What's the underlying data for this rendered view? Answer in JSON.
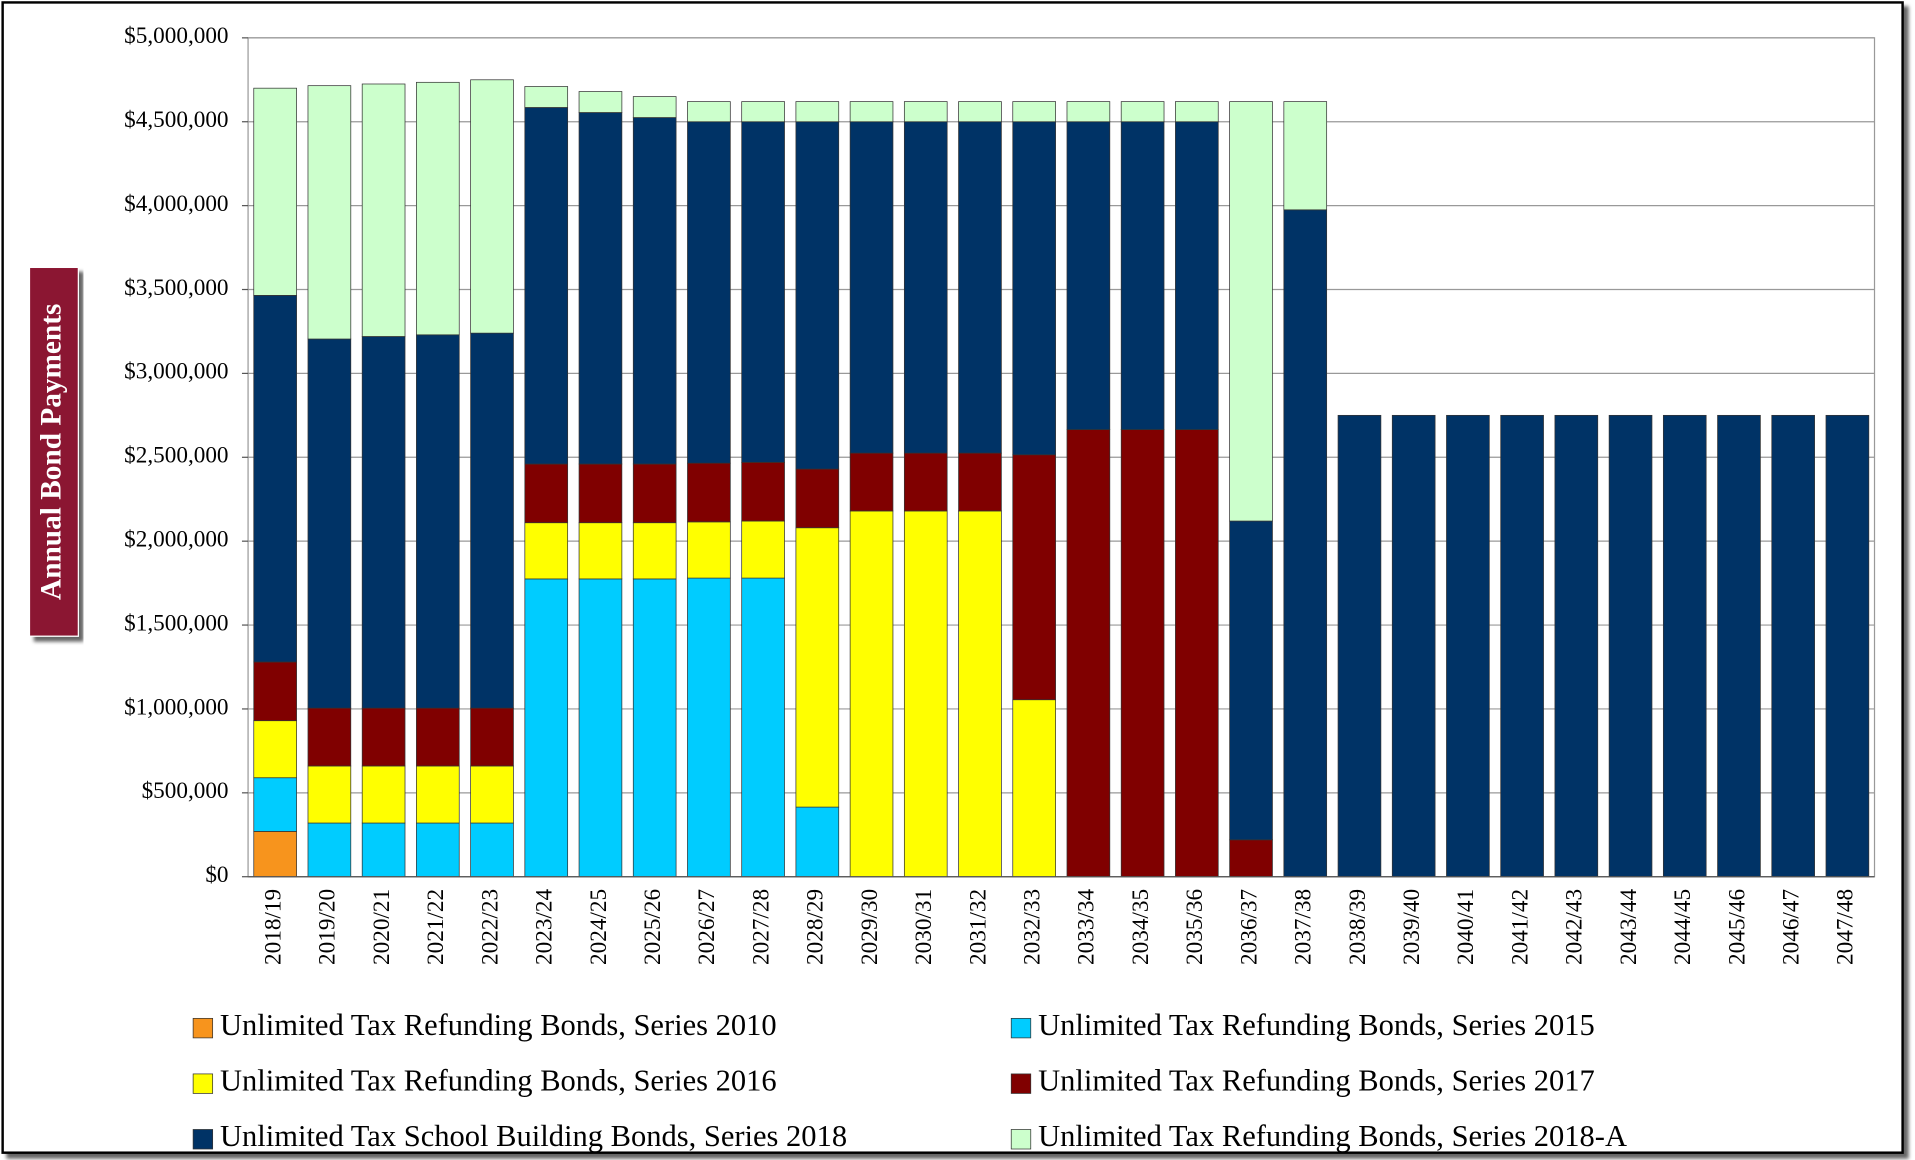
{
  "chart_data": {
    "type": "stacked_bar",
    "y_label": "Annual Bond Payments",
    "categories": [
      "2018/19",
      "2019/20",
      "2020/21",
      "2021/22",
      "2022/23",
      "2023/24",
      "2024/25",
      "2025/26",
      "2026/27",
      "2027/28",
      "2028/29",
      "2029/30",
      "2030/31",
      "2031/32",
      "2032/33",
      "2033/34",
      "2034/35",
      "2035/36",
      "2036/37",
      "2037/38",
      "2038/39",
      "2039/40",
      "2040/41",
      "2041/42",
      "2042/43",
      "2043/44",
      "2044/45",
      "2045/46",
      "2046/47",
      "2047/48"
    ],
    "series": [
      {
        "name": "Unlimited Tax Refunding Bonds, Series 2010",
        "color": "#f7941d",
        "values": [
          270000,
          0,
          0,
          0,
          0,
          0,
          0,
          0,
          0,
          0,
          0,
          0,
          0,
          0,
          0,
          0,
          0,
          0,
          0,
          0,
          0,
          0,
          0,
          0,
          0,
          0,
          0,
          0,
          0,
          0
        ]
      },
      {
        "name": "Unlimited Tax Refunding Bonds, Series 2015",
        "color": "#00ccff",
        "values": [
          320000,
          320000,
          320000,
          320000,
          320000,
          1775000,
          1775000,
          1775000,
          1780000,
          1780000,
          415000,
          0,
          0,
          0,
          0,
          0,
          0,
          0,
          0,
          0,
          0,
          0,
          0,
          0,
          0,
          0,
          0,
          0,
          0,
          0
        ]
      },
      {
        "name": "Unlimited Tax Refunding Bonds, Series 2016",
        "color": "#ffff00",
        "values": [
          340000,
          340000,
          340000,
          340000,
          340000,
          335000,
          335000,
          335000,
          335000,
          340000,
          1665000,
          2180000,
          2180000,
          2180000,
          1055000,
          0,
          0,
          0,
          0,
          0,
          0,
          0,
          0,
          0,
          0,
          0,
          0,
          0,
          0,
          0
        ]
      },
      {
        "name": "Unlimited Tax Refunding Bonds, Series 2017",
        "color": "#800000",
        "values": [
          350000,
          345000,
          345000,
          345000,
          345000,
          350000,
          350000,
          350000,
          350000,
          350000,
          350000,
          345000,
          345000,
          345000,
          1460000,
          2665000,
          2665000,
          2665000,
          220000,
          0,
          0,
          0,
          0,
          0,
          0,
          0,
          0,
          0,
          0,
          0
        ]
      },
      {
        "name": "Unlimited Tax School Building Bonds, Series 2018",
        "color": "#003366",
        "values": [
          2185000,
          2200000,
          2215000,
          2225000,
          2235000,
          2125000,
          2095000,
          2065000,
          2035000,
          2030000,
          2070000,
          1975000,
          1975000,
          1975000,
          1985000,
          1835000,
          1835000,
          1835000,
          1900000,
          3975000,
          2750000,
          2750000,
          2750000,
          2750000,
          2750000,
          2750000,
          2750000,
          2750000,
          2750000,
          2750000
        ]
      },
      {
        "name": "Unlimited Tax Refunding Bonds, Series 2018-A",
        "color": "#ccffcc",
        "values": [
          1235000,
          1510000,
          1505000,
          1505000,
          1510000,
          125000,
          125000,
          125000,
          120000,
          120000,
          120000,
          120000,
          120000,
          120000,
          120000,
          120000,
          120000,
          120000,
          2500000,
          645000,
          0,
          0,
          0,
          0,
          0,
          0,
          0,
          0,
          0,
          0
        ]
      }
    ],
    "ylim": [
      0,
      5000000
    ],
    "yticks": [
      {
        "value": 0,
        "label": "$0"
      },
      {
        "value": 500000,
        "label": "$500,000"
      },
      {
        "value": 1000000,
        "label": "$1,000,000"
      },
      {
        "value": 1500000,
        "label": "$1,500,000"
      },
      {
        "value": 2000000,
        "label": "$2,000,000"
      },
      {
        "value": 2500000,
        "label": "$2,500,000"
      },
      {
        "value": 3000000,
        "label": "$3,000,000"
      },
      {
        "value": 3500000,
        "label": "$3,500,000"
      },
      {
        "value": 4000000,
        "label": "$4,000,000"
      },
      {
        "value": 4500000,
        "label": "$4,500,000"
      },
      {
        "value": 5000000,
        "label": "$5,000,000"
      }
    ],
    "grid": true
  }
}
